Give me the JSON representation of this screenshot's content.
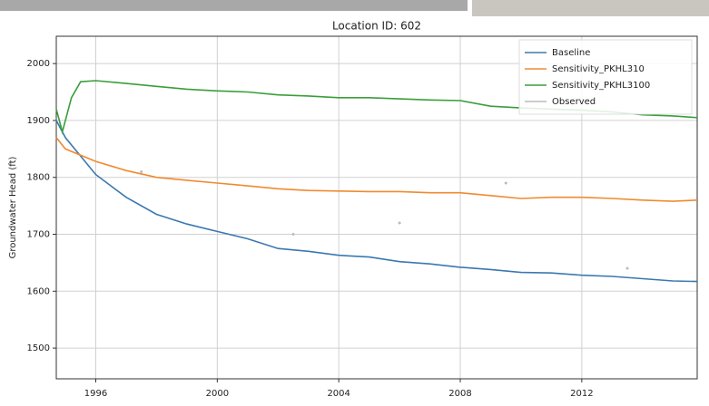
{
  "chart_data": {
    "type": "line",
    "title": "Location ID: 602",
    "y_label": "Groundwater Head (ft)",
    "xlim": [
      1994.7,
      2015.8
    ],
    "ylim": [
      1446,
      2048
    ],
    "xticks": [
      1996,
      2000,
      2004,
      2008,
      2012
    ],
    "yticks": [
      1500,
      1600,
      1700,
      1800,
      1900,
      2000
    ],
    "grid": true,
    "legend": "upper right",
    "series": [
      {
        "name": "Baseline",
        "color": "#3a78b0",
        "x": [
          1994.7,
          1995,
          1996,
          1997,
          1998,
          1999,
          2000,
          2001,
          2002,
          2003,
          2004,
          2005,
          2006,
          2007,
          2008,
          2009,
          2010,
          2011,
          2012,
          2013,
          2014,
          2015,
          2015.8
        ],
        "values": [
          1900,
          1870,
          1805,
          1765,
          1735,
          1718,
          1705,
          1692,
          1675,
          1670,
          1663,
          1660,
          1652,
          1648,
          1642,
          1638,
          1633,
          1632,
          1628,
          1626,
          1622,
          1618,
          1617
        ]
      },
      {
        "name": "Sensitivity_PKHL310",
        "color": "#f08a30",
        "x": [
          1994.7,
          1995,
          1996,
          1997,
          1998,
          1999,
          2000,
          2001,
          2002,
          2003,
          2004,
          2005,
          2006,
          2007,
          2008,
          2009,
          2010,
          2011,
          2012,
          2013,
          2014,
          2015,
          2015.8
        ],
        "values": [
          1870,
          1850,
          1828,
          1812,
          1800,
          1795,
          1790,
          1785,
          1780,
          1777,
          1776,
          1775,
          1775,
          1773,
          1773,
          1768,
          1763,
          1765,
          1765,
          1763,
          1760,
          1758,
          1760
        ]
      },
      {
        "name": "Sensitivity_PKHL3100",
        "color": "#3a9e3a",
        "x": [
          1994.7,
          1994.9,
          1995.2,
          1995.5,
          1996,
          1997,
          1998,
          1999,
          2000,
          2001,
          2002,
          2003,
          2004,
          2005,
          2006,
          2007,
          2008,
          2009,
          2010,
          2011,
          2012,
          2013,
          2014,
          2015,
          2015.8
        ],
        "values": [
          1920,
          1880,
          1940,
          1968,
          1970,
          1965,
          1960,
          1955,
          1952,
          1950,
          1945,
          1943,
          1940,
          1940,
          1938,
          1936,
          1935,
          1925,
          1922,
          1920,
          1918,
          1915,
          1910,
          1908,
          1905
        ]
      },
      {
        "name": "Observed",
        "color": "#bbbbbb",
        "x": [
          1997.5,
          2002.5,
          2006,
          2009.5,
          2013.5
        ],
        "values": [
          1810,
          1700,
          1720,
          1790,
          1640
        ]
      }
    ]
  }
}
